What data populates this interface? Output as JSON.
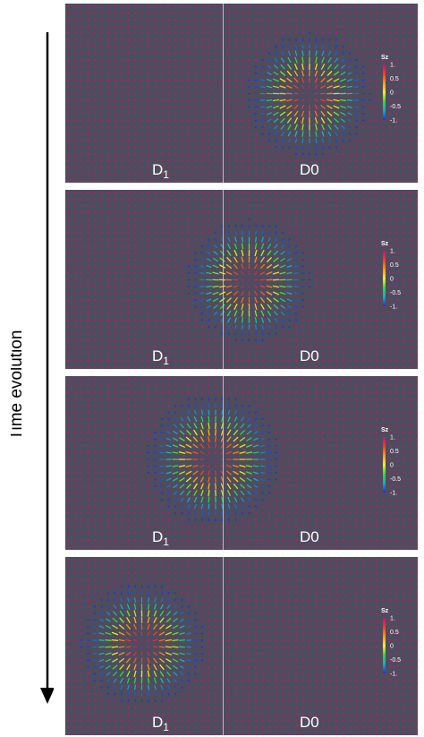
{
  "axis_label": "Time evolution",
  "colorbar": {
    "title": "Sz",
    "ticks": [
      "1.",
      "0.5",
      "0",
      "-0.5",
      "-1."
    ],
    "colors": [
      "#c0137a",
      "#ff3a22",
      "#ff9d10",
      "#f2f21a",
      "#39d63b",
      "#1fa6c9",
      "#2332c8"
    ]
  },
  "panels": [
    {
      "label_left_main": "D",
      "label_left_sub": "1",
      "label_right": "D0",
      "skyrmion_center": [
        0.69,
        0.51
      ],
      "radius": 0.13,
      "boundary_x": 0.448
    },
    {
      "label_left_main": "D",
      "label_left_sub": "1",
      "label_right": "D0",
      "skyrmion_center": [
        0.52,
        0.51
      ],
      "radius": 0.13,
      "boundary_x": 0.448
    },
    {
      "label_left_main": "D",
      "label_left_sub": "1",
      "label_right": "D0",
      "skyrmion_center": [
        0.42,
        0.48
      ],
      "radius": 0.14,
      "boundary_x": 0.448
    },
    {
      "label_left_main": "D",
      "label_left_sub": "1",
      "label_right": "D0",
      "skyrmion_center": [
        0.22,
        0.49
      ],
      "radius": 0.13,
      "boundary_x": 0.448
    }
  ],
  "background_color": "#4e4c5e",
  "dot_color": "#a02868"
}
